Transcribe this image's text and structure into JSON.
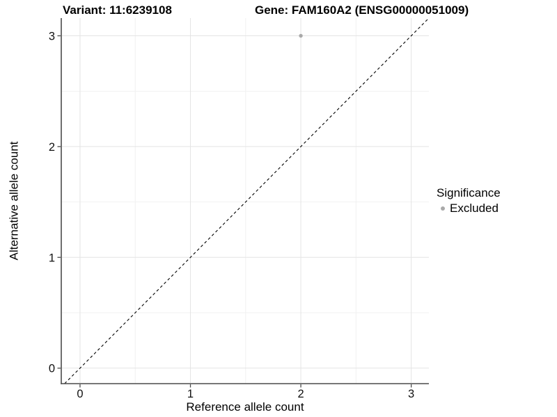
{
  "header": {
    "variant_title": "Variant: 11:6239108",
    "gene_title": "Gene: FAM160A2 (ENSG00000051009)"
  },
  "legend": {
    "title": "Significance",
    "items": [
      {
        "label": "Excluded",
        "color": "#a9a9a9"
      }
    ]
  },
  "colors": {
    "point": "#a9a9a9",
    "axis": "#4a4a4a",
    "grid_major": "#e4e4e4",
    "grid_minor": "#f1f1f1",
    "dash_line": "#000000",
    "tick_text": "#111111"
  },
  "chart_data": {
    "type": "scatter",
    "title": "",
    "xlabel": "Reference allele count",
    "ylabel": "Alternative allele count",
    "xlim": [
      -0.17,
      3.16
    ],
    "ylim": [
      -0.14,
      3.16
    ],
    "xticks": [
      0,
      1,
      2,
      3
    ],
    "yticks": [
      0,
      1,
      2,
      3
    ],
    "minor_ticks": [
      0.5,
      1.5,
      2.5
    ],
    "grid": true,
    "legend_position": "right",
    "series": [
      {
        "name": "Excluded",
        "points": [
          {
            "x": 2,
            "y": 3
          }
        ]
      }
    ],
    "identity_line": {
      "style": "dashed",
      "slope": 1,
      "intercept": 0
    }
  }
}
